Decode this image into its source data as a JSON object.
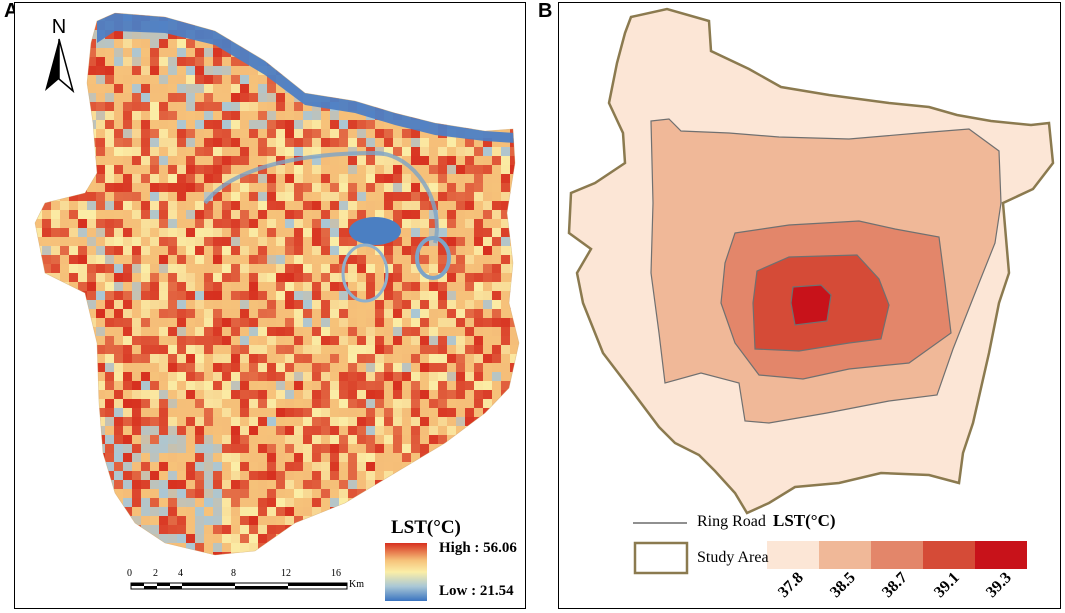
{
  "panels": {
    "a": {
      "letter": "A",
      "north_label": "N",
      "legend": {
        "title": "LST(°C)",
        "high_label": "High : 56.06",
        "low_label": "Low : 21.54",
        "colors": [
          "#d7301f",
          "#f6c27a",
          "#fbeea7",
          "#a9c7d6",
          "#3a74c0"
        ]
      },
      "scalebar": {
        "ticks": [
          "0",
          "2",
          "4",
          "8",
          "12",
          "16"
        ],
        "unit": "Km"
      }
    },
    "b": {
      "letter": "B",
      "legend": {
        "ring_road_label": "Ring Road",
        "study_area_label": "Study Area",
        "lst_title": "LST(°C)",
        "classes": [
          {
            "label": "37.8",
            "color": "#fce6d6"
          },
          {
            "label": "38.5",
            "color": "#f0b898"
          },
          {
            "label": "38.7",
            "color": "#e3866a"
          },
          {
            "label": "39.1",
            "color": "#d54b37"
          },
          {
            "label": "39.3",
            "color": "#c8121a"
          }
        ]
      },
      "colors": {
        "study_area_border": "#8b7a4f",
        "ring_road": "#6b6b6b"
      }
    }
  }
}
